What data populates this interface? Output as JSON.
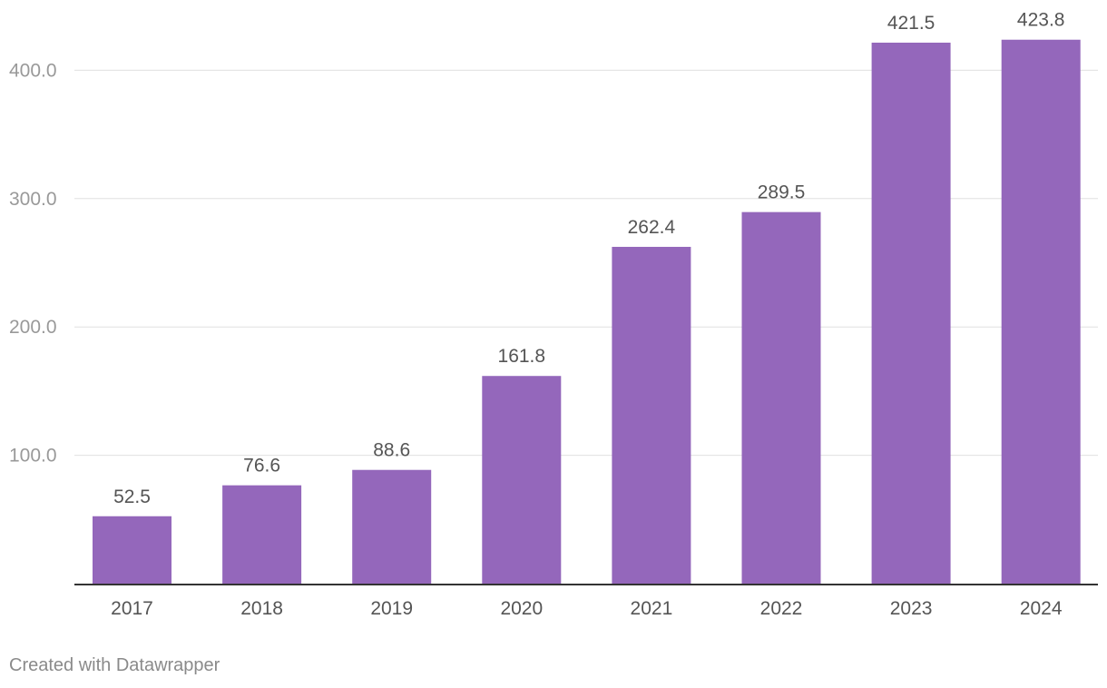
{
  "chart_data": {
    "type": "bar",
    "categories": [
      "2017",
      "2018",
      "2019",
      "2020",
      "2021",
      "2022",
      "2023",
      "2024"
    ],
    "values": [
      52.5,
      76.6,
      88.6,
      161.8,
      262.4,
      289.5,
      421.5,
      423.8
    ],
    "value_labels": [
      "52.5",
      "76.6",
      "88.6",
      "161.8",
      "262.4",
      "289.5",
      "421.5",
      "423.8"
    ],
    "y_ticks": [
      100,
      200,
      300,
      400
    ],
    "y_tick_labels": [
      "100.0",
      "200.0",
      "300.0",
      "400.0"
    ],
    "ylim": [
      0,
      430
    ],
    "title": "",
    "xlabel": "",
    "ylabel": "",
    "grid": true,
    "bar_color": "#9467bb",
    "gridline_color": "#e0e0e0",
    "axis_color": "#333333",
    "tick_label_color": "#999999",
    "category_label_color": "#555555",
    "value_label_color": "#555555"
  },
  "footer": {
    "credit": "Created with Datawrapper"
  }
}
